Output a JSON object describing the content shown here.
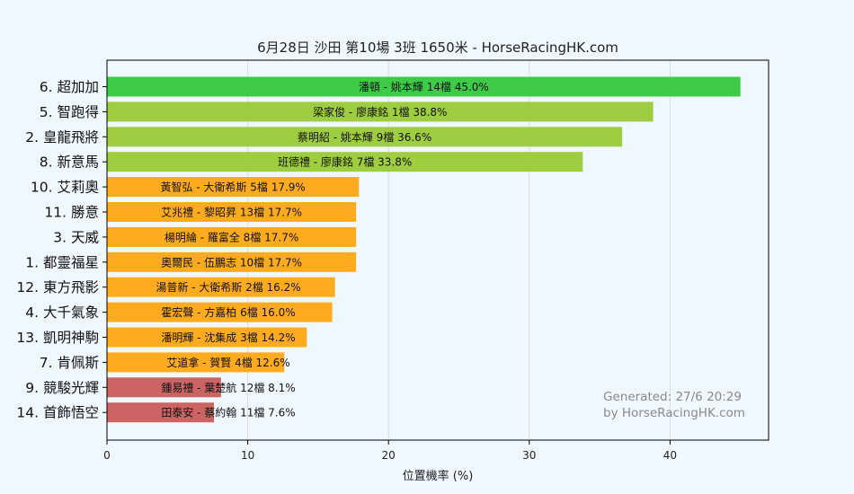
{
  "chart_data": {
    "type": "bar",
    "orientation": "horizontal",
    "title": "6月28日  沙田  第10場  3班  1650米 - HorseRacingHK.com",
    "xlabel": "位置機率 (%)",
    "ylabel": "",
    "xlim": [
      0,
      47
    ],
    "xticks": [
      0,
      10,
      20,
      30,
      40
    ],
    "grid": true,
    "categories": [
      "6. 超加加",
      "5. 智跑得",
      "2. 皇龍飛將",
      "8. 新意馬",
      "10. 艾莉奧",
      "11. 勝意",
      "3. 天威",
      "1. 都靈福星",
      "12. 東方飛影",
      "4. 大千氣象",
      "13. 凱明神駒",
      "7. 肯佩斯",
      "9. 競駿光輝",
      "14. 首飾悟空"
    ],
    "values": [
      45.0,
      38.8,
      36.6,
      33.8,
      17.9,
      17.7,
      17.7,
      17.7,
      16.2,
      16.0,
      14.2,
      12.6,
      8.1,
      7.6
    ],
    "labels": [
      "潘頓 - 姚本輝 14檔  45.0%",
      "梁家俊 - 廖康銘 1檔  38.8%",
      "蔡明紹 - 姚本輝 9檔  36.6%",
      "班德禮 - 廖康銘 7檔  33.8%",
      "黃智弘 - 大衛希斯 5檔  17.9%",
      "艾兆禮 - 黎昭昇 13檔  17.7%",
      "楊明綸 - 羅富全 8檔  17.7%",
      "奧爾民 - 伍鵬志 10檔  17.7%",
      "湯普新 - 大衛希斯 2檔  16.2%",
      "霍宏聲 - 方嘉柏 6檔  16.0%",
      "潘明輝 - 沈集成 3檔  14.2%",
      "艾道拿 - 賀賢 4檔  12.6%",
      "鍾易禮 - 葉楚航 12檔  8.1%",
      "田泰安 - 蔡約翰 11檔  7.6%"
    ],
    "colors": [
      "#3ecc48",
      "#9fcd42",
      "#9fcd42",
      "#9fcd42",
      "#ffab1f",
      "#ffab1f",
      "#ffab1f",
      "#ffab1f",
      "#ffab1f",
      "#ffab1f",
      "#ffab1f",
      "#ffab1f",
      "#cd6464",
      "#cd6464"
    ],
    "plot_background": "#f0f8ff"
  },
  "watermark": {
    "line1": "Generated: 27/6 20:29",
    "line2": "by HorseRacingHK.com"
  }
}
